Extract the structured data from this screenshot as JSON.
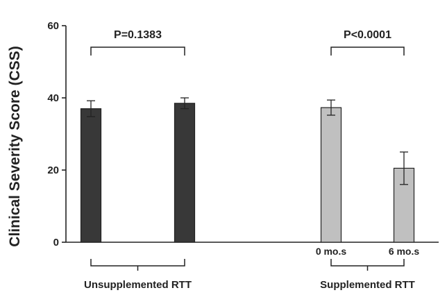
{
  "chart_data": {
    "type": "bar",
    "ylabel": "Clinical Severity Score (CSS)",
    "ylim": [
      0,
      60
    ],
    "yticks": [
      0,
      20,
      40,
      60
    ],
    "grid": false,
    "groups": [
      {
        "label": "Unsupplemented RTT",
        "p_value_label": "P=0.1383",
        "bars": [
          {
            "condition": "",
            "value": 37,
            "error": 2.2,
            "color": "#383838"
          },
          {
            "condition": "",
            "value": 38.5,
            "error": 1.5,
            "color": "#383838"
          }
        ]
      },
      {
        "label": "Supplemented RTT",
        "p_value_label": "P<0.0001",
        "bars": [
          {
            "condition": "0 mo.s",
            "value": 37.3,
            "error": 2.1,
            "color": "#c0c0c0"
          },
          {
            "condition": "6 mo.s",
            "value": 20.5,
            "error": 4.5,
            "color": "#c0c0c0"
          }
        ]
      }
    ]
  }
}
